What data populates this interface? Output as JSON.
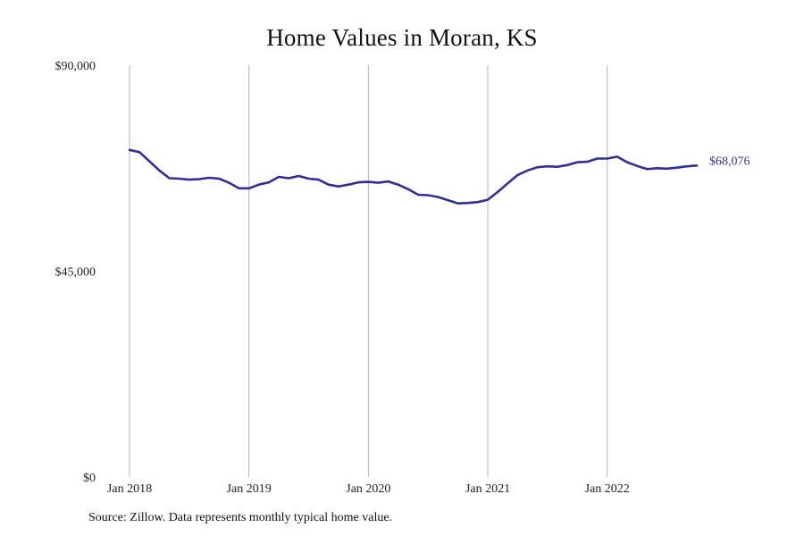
{
  "chart_data": {
    "type": "line",
    "title": "Home Values in Moran, KS",
    "xlabel": "",
    "ylabel": "",
    "ylim": [
      0,
      90000
    ],
    "y_ticks": [
      {
        "value": 0,
        "label": "$0"
      },
      {
        "value": 45000,
        "label": "$45,000"
      },
      {
        "value": 90000,
        "label": "$90,000"
      }
    ],
    "x_ticks": [
      {
        "date": "2018-01",
        "label": "Jan 2018"
      },
      {
        "date": "2019-01",
        "label": "Jan 2019"
      },
      {
        "date": "2020-01",
        "label": "Jan 2020"
      },
      {
        "date": "2021-01",
        "label": "Jan 2021"
      },
      {
        "date": "2022-01",
        "label": "Jan 2022"
      }
    ],
    "vertical_gridlines": true,
    "series": [
      {
        "color": "#332e96",
        "end_label": "$68,076",
        "points": [
          [
            "2018-01",
            71500
          ],
          [
            "2018-02",
            71000
          ],
          [
            "2018-03",
            69000
          ],
          [
            "2018-04",
            67000
          ],
          [
            "2018-05",
            65300
          ],
          [
            "2018-06",
            65200
          ],
          [
            "2018-07",
            65000
          ],
          [
            "2018-08",
            65100
          ],
          [
            "2018-09",
            65400
          ],
          [
            "2018-10",
            65200
          ],
          [
            "2018-11",
            64300
          ],
          [
            "2018-12",
            63100
          ],
          [
            "2019-01",
            63100
          ],
          [
            "2019-02",
            63900
          ],
          [
            "2019-03",
            64400
          ],
          [
            "2019-04",
            65600
          ],
          [
            "2019-05",
            65300
          ],
          [
            "2019-06",
            65800
          ],
          [
            "2019-07",
            65200
          ],
          [
            "2019-08",
            65000
          ],
          [
            "2019-09",
            63900
          ],
          [
            "2019-10",
            63500
          ],
          [
            "2019-11",
            63900
          ],
          [
            "2019-12",
            64400
          ],
          [
            "2020-01",
            64500
          ],
          [
            "2020-02",
            64300
          ],
          [
            "2020-03",
            64600
          ],
          [
            "2020-04",
            63900
          ],
          [
            "2020-05",
            62900
          ],
          [
            "2020-06",
            61700
          ],
          [
            "2020-07",
            61600
          ],
          [
            "2020-08",
            61200
          ],
          [
            "2020-09",
            60500
          ],
          [
            "2020-10",
            59800
          ],
          [
            "2020-11",
            59900
          ],
          [
            "2020-12",
            60100
          ],
          [
            "2021-01",
            60600
          ],
          [
            "2021-02",
            62300
          ],
          [
            "2021-03",
            64200
          ],
          [
            "2021-04",
            66000
          ],
          [
            "2021-05",
            67000
          ],
          [
            "2021-06",
            67700
          ],
          [
            "2021-07",
            67900
          ],
          [
            "2021-08",
            67800
          ],
          [
            "2021-09",
            68200
          ],
          [
            "2021-10",
            68800
          ],
          [
            "2021-11",
            68900
          ],
          [
            "2021-12",
            69600
          ],
          [
            "2022-01",
            69600
          ],
          [
            "2022-02",
            70000
          ],
          [
            "2022-03",
            68800
          ],
          [
            "2022-04",
            68000
          ],
          [
            "2022-05",
            67300
          ],
          [
            "2022-06",
            67500
          ],
          [
            "2022-07",
            67400
          ],
          [
            "2022-08",
            67600
          ],
          [
            "2022-09",
            67900
          ],
          [
            "2022-10",
            68076
          ]
        ]
      }
    ]
  },
  "source_note": "Source: Zillow. Data represents monthly typical home value."
}
